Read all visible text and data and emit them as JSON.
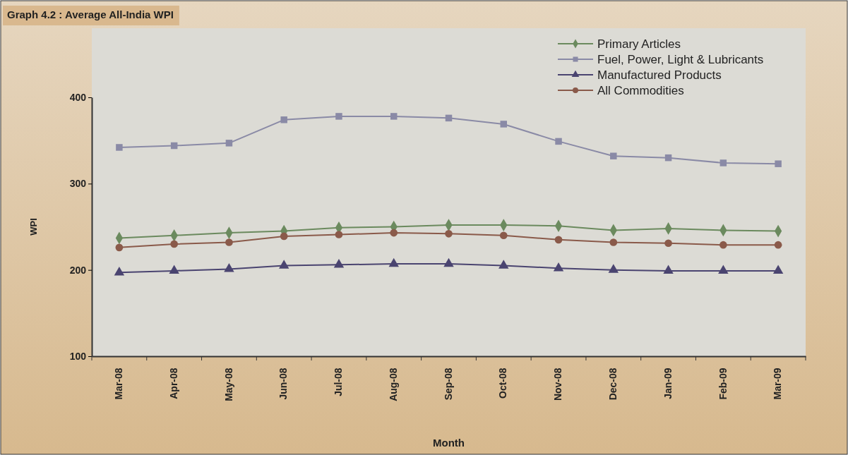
{
  "chart_data": {
    "type": "line",
    "title": "Graph 4.2 : Average All-India WPI",
    "xlabel": "Month",
    "ylabel": "WPI",
    "categories": [
      "Mar-08",
      "Apr-08",
      "May-08",
      "Jun-08",
      "Jul-08",
      "Aug-08",
      "Sep-08",
      "Oct-08",
      "Nov-08",
      "Dec-08",
      "Jan-09",
      "Feb-09",
      "Mar-09"
    ],
    "series": [
      {
        "name": "Primary Articles",
        "color": "#6b8a5e",
        "marker": "diamond",
        "values": [
          237,
          240,
          243,
          245,
          249,
          250,
          252,
          252,
          251,
          246,
          248,
          246,
          245
        ]
      },
      {
        "name": "Fuel, Power, Light & Lubricants",
        "color": "#8a8aa6",
        "marker": "square",
        "values": [
          342,
          344,
          347,
          374,
          378,
          378,
          376,
          369,
          349,
          332,
          330,
          324,
          323
        ]
      },
      {
        "name": "Manufactured Products",
        "color": "#4a4470",
        "marker": "triangle",
        "values": [
          197,
          199,
          201,
          205,
          206,
          207,
          207,
          205,
          202,
          200,
          199,
          199,
          199
        ]
      },
      {
        "name": "All Commodities",
        "color": "#8a5a4a",
        "marker": "circle",
        "values": [
          226,
          230,
          232,
          239,
          241,
          243,
          242,
          240,
          235,
          232,
          231,
          229,
          229
        ]
      }
    ],
    "ylim": [
      100,
      400
    ],
    "yticks": [
      100,
      200,
      300,
      400
    ],
    "grid": false,
    "legend": "top right",
    "line_style": "solid"
  }
}
